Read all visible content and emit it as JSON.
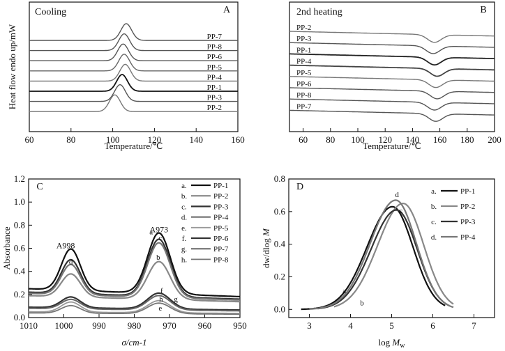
{
  "chart_data": [
    {
      "type": "line",
      "panel_label": "A",
      "title": "Cooling",
      "xlabel": "Temperature/℃",
      "ylabel": "Heat flow endo up/mW",
      "xlim": [
        60,
        160
      ],
      "xticks": [
        60,
        80,
        100,
        120,
        140,
        160
      ],
      "grid": false,
      "legend": "inline curve labels on right",
      "series": [
        {
          "name": "PP-7",
          "peak_x": 106.5,
          "color": "#555555",
          "dark": false
        },
        {
          "name": "PP-8",
          "peak_x": 105.5,
          "color": "#555555",
          "dark": false
        },
        {
          "name": "PP-6",
          "peak_x": 105.0,
          "color": "#555555",
          "dark": false
        },
        {
          "name": "PP-5",
          "peak_x": 105.5,
          "color": "#666666",
          "dark": false
        },
        {
          "name": "PP-4",
          "peak_x": 106.0,
          "color": "#777777",
          "dark": false
        },
        {
          "name": "PP-1",
          "peak_x": 104.5,
          "color": "#111111",
          "dark": true
        },
        {
          "name": "PP-3",
          "peak_x": 103.5,
          "color": "#555555",
          "dark": false
        },
        {
          "name": "PP-2",
          "peak_x": 101.0,
          "color": "#777777",
          "dark": false
        }
      ]
    },
    {
      "type": "line",
      "panel_label": "B",
      "title": "2nd heating",
      "xlabel": "Temperature/℃",
      "ylabel": "",
      "xlim": [
        50,
        200
      ],
      "xticks": [
        60,
        80,
        100,
        120,
        140,
        160,
        180,
        200
      ],
      "grid": false,
      "legend": "inline curve labels on left",
      "series": [
        {
          "name": "PP-2",
          "dip_x": 156,
          "color": "#777777",
          "dark": false
        },
        {
          "name": "PP-3",
          "dip_x": 155,
          "color": "#555555",
          "dark": false
        },
        {
          "name": "PP-1",
          "dip_x": 156,
          "color": "#222222",
          "dark": true
        },
        {
          "name": "PP-4",
          "dip_x": 158,
          "color": "#444444",
          "dark": true
        },
        {
          "name": "PP-5",
          "dip_x": 157,
          "color": "#777777",
          "dark": false
        },
        {
          "name": "PP-6",
          "dip_x": 158,
          "color": "#555555",
          "dark": false
        },
        {
          "name": "PP-8",
          "dip_x": 156,
          "color": "#555555",
          "dark": false
        },
        {
          "name": "PP-7",
          "dip_x": 157,
          "color": "#555555",
          "dark": false
        }
      ]
    },
    {
      "type": "line",
      "panel_label": "C",
      "title": "",
      "xlabel": "σ/cm-1",
      "ylabel": "Absorbance",
      "xlim": [
        1010,
        950
      ],
      "ylim": [
        0,
        1.2
      ],
      "xticks": [
        1010,
        1000,
        990,
        980,
        970,
        960,
        950
      ],
      "yticks": [
        0.0,
        0.2,
        0.4,
        0.6,
        0.8,
        1.0,
        1.2
      ],
      "grid": false,
      "legend": "top-right",
      "annotations": [
        {
          "text": "A998",
          "x": 999.5,
          "y": 0.6
        },
        {
          "text": "A973",
          "x": 973.0,
          "y": 0.74
        }
      ],
      "series": [
        {
          "letter": "a",
          "name": "PP-1",
          "peak998": 0.57,
          "peak973": 0.7,
          "base": 0.25,
          "color": "#111111",
          "width": 2.2
        },
        {
          "letter": "b",
          "name": "PP-2",
          "peak998": 0.36,
          "peak973": 0.46,
          "base": 0.19,
          "color": "#888888",
          "width": 2.2
        },
        {
          "letter": "c",
          "name": "PP-3",
          "peak998": 0.48,
          "peak973": 0.65,
          "base": 0.22,
          "color": "#333333",
          "width": 2.2
        },
        {
          "letter": "d",
          "name": "PP-4",
          "peak998": 0.44,
          "peak973": 0.62,
          "base": 0.21,
          "color": "#777777",
          "width": 2.2
        },
        {
          "letter": "e",
          "name": "PP-5",
          "peak998": 0.13,
          "peak973": 0.14,
          "base": 0.05,
          "color": "#999999",
          "width": 1.8
        },
        {
          "letter": "f",
          "name": "PP-6",
          "peak998": 0.17,
          "peak973": 0.2,
          "base": 0.09,
          "color": "#333333",
          "width": 2.2
        },
        {
          "letter": "g",
          "name": "PP-7",
          "peak998": 0.15,
          "peak973": 0.18,
          "base": 0.08,
          "color": "#666666",
          "width": 2.0
        },
        {
          "letter": "h",
          "name": "PP-8",
          "peak998": 0.1,
          "peak973": 0.12,
          "base": 0.04,
          "color": "#777777",
          "width": 1.8
        }
      ]
    },
    {
      "type": "line",
      "panel_label": "D",
      "title": "",
      "xlabel": "log M_w",
      "ylabel": "dw/dlog M",
      "xlim": [
        2.5,
        7.5
      ],
      "ylim": [
        -0.05,
        0.8
      ],
      "xticks": [
        3,
        4,
        5,
        6,
        7
      ],
      "yticks": [
        0.0,
        0.2,
        0.4,
        0.6,
        0.8
      ],
      "grid": false,
      "legend": "top-right",
      "series": [
        {
          "letter": "a",
          "name": "PP-1",
          "peak_x": 5.02,
          "peak_y": 0.63,
          "x_start": 2.8,
          "x_end": 6.3,
          "color": "#111111",
          "width": 2.2
        },
        {
          "letter": "b",
          "name": "PP-2",
          "peak_x": 5.28,
          "peak_y": 0.65,
          "x_start": 3.6,
          "x_end": 6.5,
          "color": "#888888",
          "width": 2.2
        },
        {
          "letter": "c",
          "name": "PP-3",
          "peak_x": 5.12,
          "peak_y": 0.61,
          "x_start": 3.2,
          "x_end": 6.4,
          "color": "#333333",
          "width": 2.2
        },
        {
          "letter": "d",
          "name": "PP-4",
          "peak_x": 5.1,
          "peak_y": 0.67,
          "x_start": 3.0,
          "x_end": 6.5,
          "color": "#777777",
          "width": 2.2
        }
      ]
    }
  ]
}
